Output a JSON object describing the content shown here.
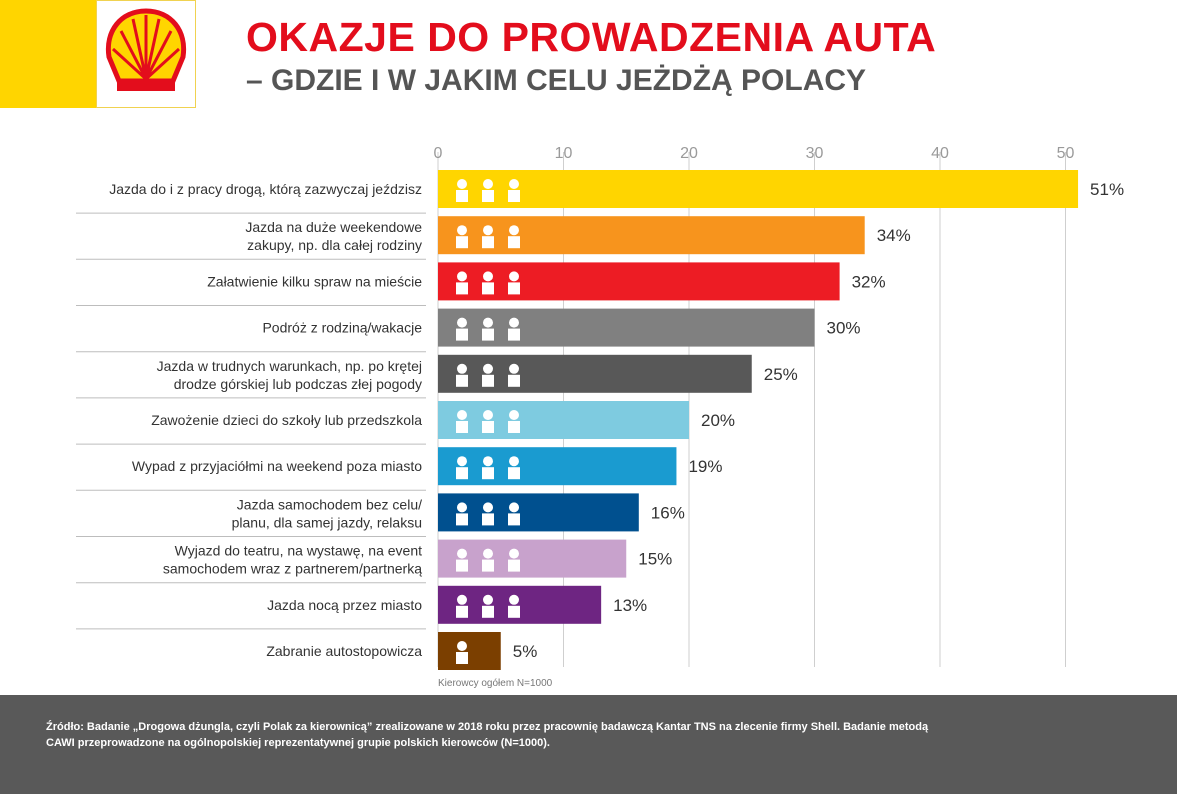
{
  "header": {
    "title": "OKAZJE DO PROWADZENIA AUTA",
    "subtitle": "– GDZIE I W JAKIM CELU JEŻDŻĄ POLACY",
    "logo": "shell-pecten-logo"
  },
  "colors": {
    "brand_yellow": "#ffd500",
    "brand_red": "#e30d1c",
    "footer_bg": "#595959"
  },
  "chart_data": {
    "type": "bar",
    "orientation": "horizontal",
    "title": "OKAZJE DO PROWADZENIA AUTA",
    "subtitle": "– GDZIE I W JAKIM CELU JEŻDŻĄ POLACY",
    "xlim": [
      0,
      52
    ],
    "xticks": [
      0,
      10,
      20,
      30,
      40,
      50
    ],
    "grid": true,
    "note": "Kierowcy ogółem N=1000",
    "categories": [
      [
        "Jazda do i z pracy drogą, którą zazwyczaj jeździsz"
      ],
      [
        "Jazda na duże weekendowe",
        "zakupy, np. dla całej rodziny"
      ],
      [
        "Załatwienie kilku spraw na mieście"
      ],
      [
        "Podróż z rodziną/wakacje"
      ],
      [
        "Jazda w trudnych warunkach, np. po krętej",
        "drodze górskiej lub podczas złej pogody"
      ],
      [
        "Zawożenie dzieci do szkoły lub przedszkola"
      ],
      [
        "Wypad z przyjaciółmi na weekend poza miasto"
      ],
      [
        "Jazda samochodem bez celu/",
        "planu, dla samej jazdy, relaksu"
      ],
      [
        "Wyjazd do teatru, na wystawę, na event",
        "samochodem wraz z partnerem/partnerką"
      ],
      [
        "Jazda nocą przez miasto"
      ],
      [
        "Zabranie autostopowicza"
      ]
    ],
    "values": [
      51,
      34,
      32,
      30,
      25,
      20,
      19,
      16,
      15,
      13,
      5
    ],
    "value_labels": [
      "51%",
      "34%",
      "32%",
      "30%",
      "25%",
      "20%",
      "19%",
      "16%",
      "15%",
      "13%",
      "5%"
    ],
    "bar_colors": [
      "#ffd500",
      "#f7941d",
      "#ed1c24",
      "#808080",
      "#585858",
      "#7ecbe0",
      "#1a9bd0",
      "#00508f",
      "#c8a2cc",
      "#6e2582",
      "#7b3f00"
    ],
    "icons": [
      "map-pins-route-icons",
      "cart-family-icons",
      "fuel-heart-pin-icons",
      "globe-family-icons",
      "weather-warning-pin-icons",
      "school-board-children-icons",
      "friends-tree-sun-icons",
      "question-route-pin-icons",
      "screen-couple-icons",
      "map-moon-pin-icons",
      "hitchhiker-icon"
    ]
  },
  "footer": {
    "source": "Źródło: Badanie „Drogowa dżungla, czyli Polak za kierownicą” zrealizowane w 2018 roku przez pracownię badawczą Kantar TNS na zlecenie firmy Shell. Badanie metodą CAWI przeprowadzone na ogólnopolskiej reprezentatywnej grupie polskich kierowców (N=1000)."
  }
}
